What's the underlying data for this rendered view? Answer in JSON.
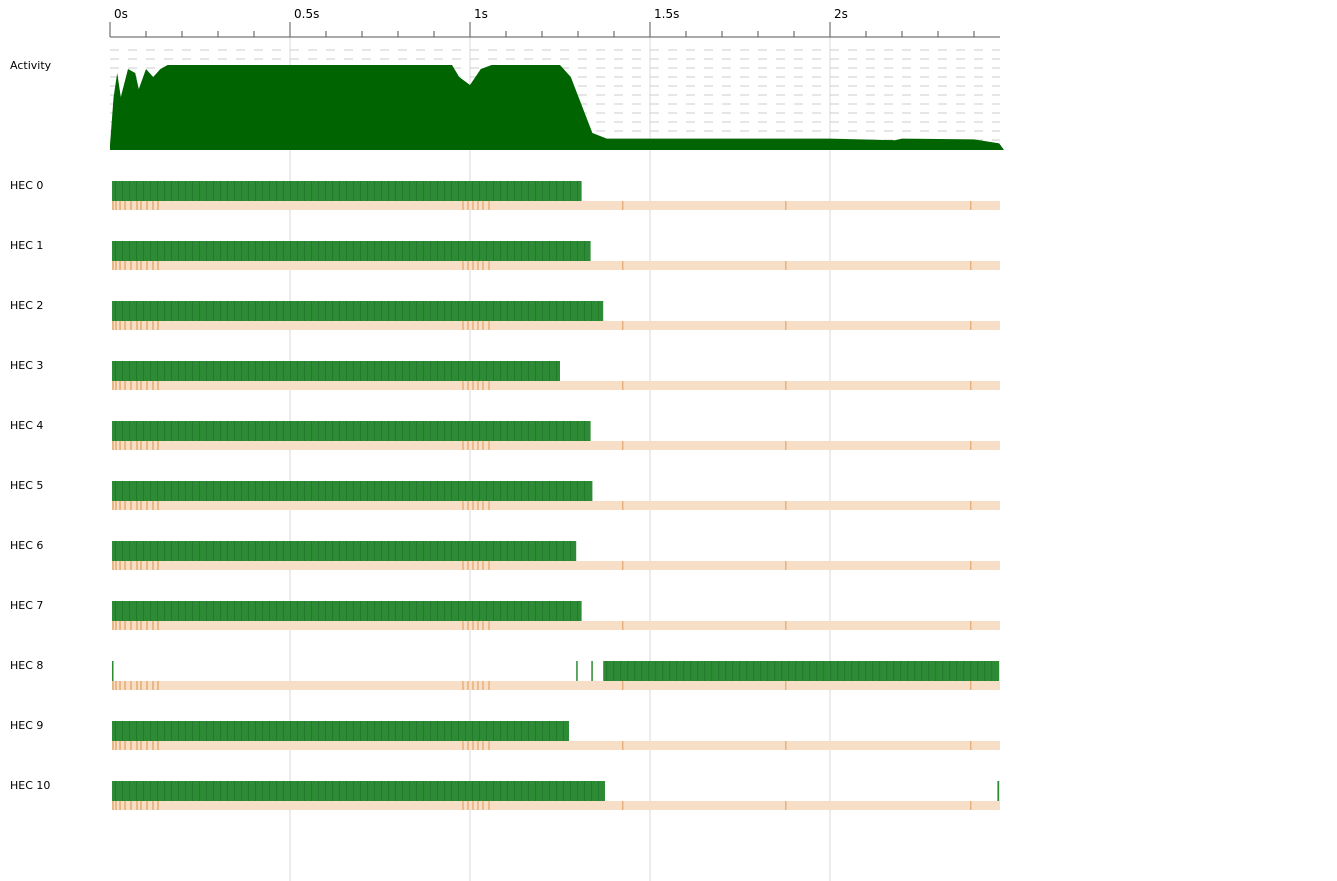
{
  "timeline": {
    "ticks": [
      {
        "t": 0,
        "label": "0s"
      },
      {
        "t": 0.5,
        "label": "0.5s"
      },
      {
        "t": 1,
        "label": "1s"
      },
      {
        "t": 1.5,
        "label": "1.5s"
      },
      {
        "t": 2,
        "label": "2s"
      }
    ],
    "activity_label": "Activity",
    "activity_color": "#006400",
    "run_color": "#2e8b35",
    "event_color": "#f6dfc6",
    "event_dark_color": "#e6a56a",
    "activity_profile": [
      [
        0,
        0.0
      ],
      [
        0.01,
        0.6
      ],
      [
        0.02,
        0.9
      ],
      [
        0.03,
        0.6
      ],
      [
        0.05,
        0.95
      ],
      [
        0.07,
        0.9
      ],
      [
        0.08,
        0.7
      ],
      [
        0.1,
        0.95
      ],
      [
        0.12,
        0.85
      ],
      [
        0.14,
        0.95
      ],
      [
        0.16,
        1.0
      ],
      [
        0.3,
        1.0
      ],
      [
        0.5,
        1.0
      ],
      [
        0.7,
        1.0
      ],
      [
        0.95,
        1.0
      ],
      [
        0.97,
        0.85
      ],
      [
        1.0,
        0.75
      ],
      [
        1.03,
        0.95
      ],
      [
        1.06,
        1.0
      ],
      [
        1.25,
        1.0
      ],
      [
        1.28,
        0.85
      ],
      [
        1.31,
        0.5
      ],
      [
        1.34,
        0.15
      ],
      [
        1.38,
        0.08
      ],
      [
        1.5,
        0.08
      ],
      [
        2.0,
        0.08
      ],
      [
        2.18,
        0.06
      ],
      [
        2.2,
        0.08
      ],
      [
        2.4,
        0.07
      ],
      [
        2.47,
        0.02
      ]
    ],
    "hecs": [
      {
        "label": "HEC 0",
        "runs": [
          [
            0.0,
            1.31
          ]
        ]
      },
      {
        "label": "HEC 1",
        "runs": [
          [
            0.0,
            1.335
          ]
        ]
      },
      {
        "label": "HEC 2",
        "runs": [
          [
            0.0,
            1.37
          ]
        ]
      },
      {
        "label": "HEC 3",
        "runs": [
          [
            0.0,
            1.25
          ]
        ]
      },
      {
        "label": "HEC 4",
        "runs": [
          [
            0.0,
            1.335
          ]
        ]
      },
      {
        "label": "HEC 5",
        "runs": [
          [
            0.0,
            1.34
          ]
        ]
      },
      {
        "label": "HEC 6",
        "runs": [
          [
            0.0,
            1.295
          ]
        ]
      },
      {
        "label": "HEC 7",
        "runs": [
          [
            0.0,
            1.31
          ]
        ]
      },
      {
        "label": "HEC 8",
        "runs": [
          [
            0.0,
            0.005
          ],
          [
            1.295,
            1.298
          ],
          [
            1.337,
            1.34
          ],
          [
            1.37,
            2.47
          ]
        ]
      },
      {
        "label": "HEC 9",
        "runs": [
          [
            0.0,
            1.275
          ]
        ]
      },
      {
        "label": "HEC 10",
        "runs": [
          [
            0.0,
            1.375
          ],
          [
            2.465,
            2.47
          ]
        ]
      }
    ]
  }
}
